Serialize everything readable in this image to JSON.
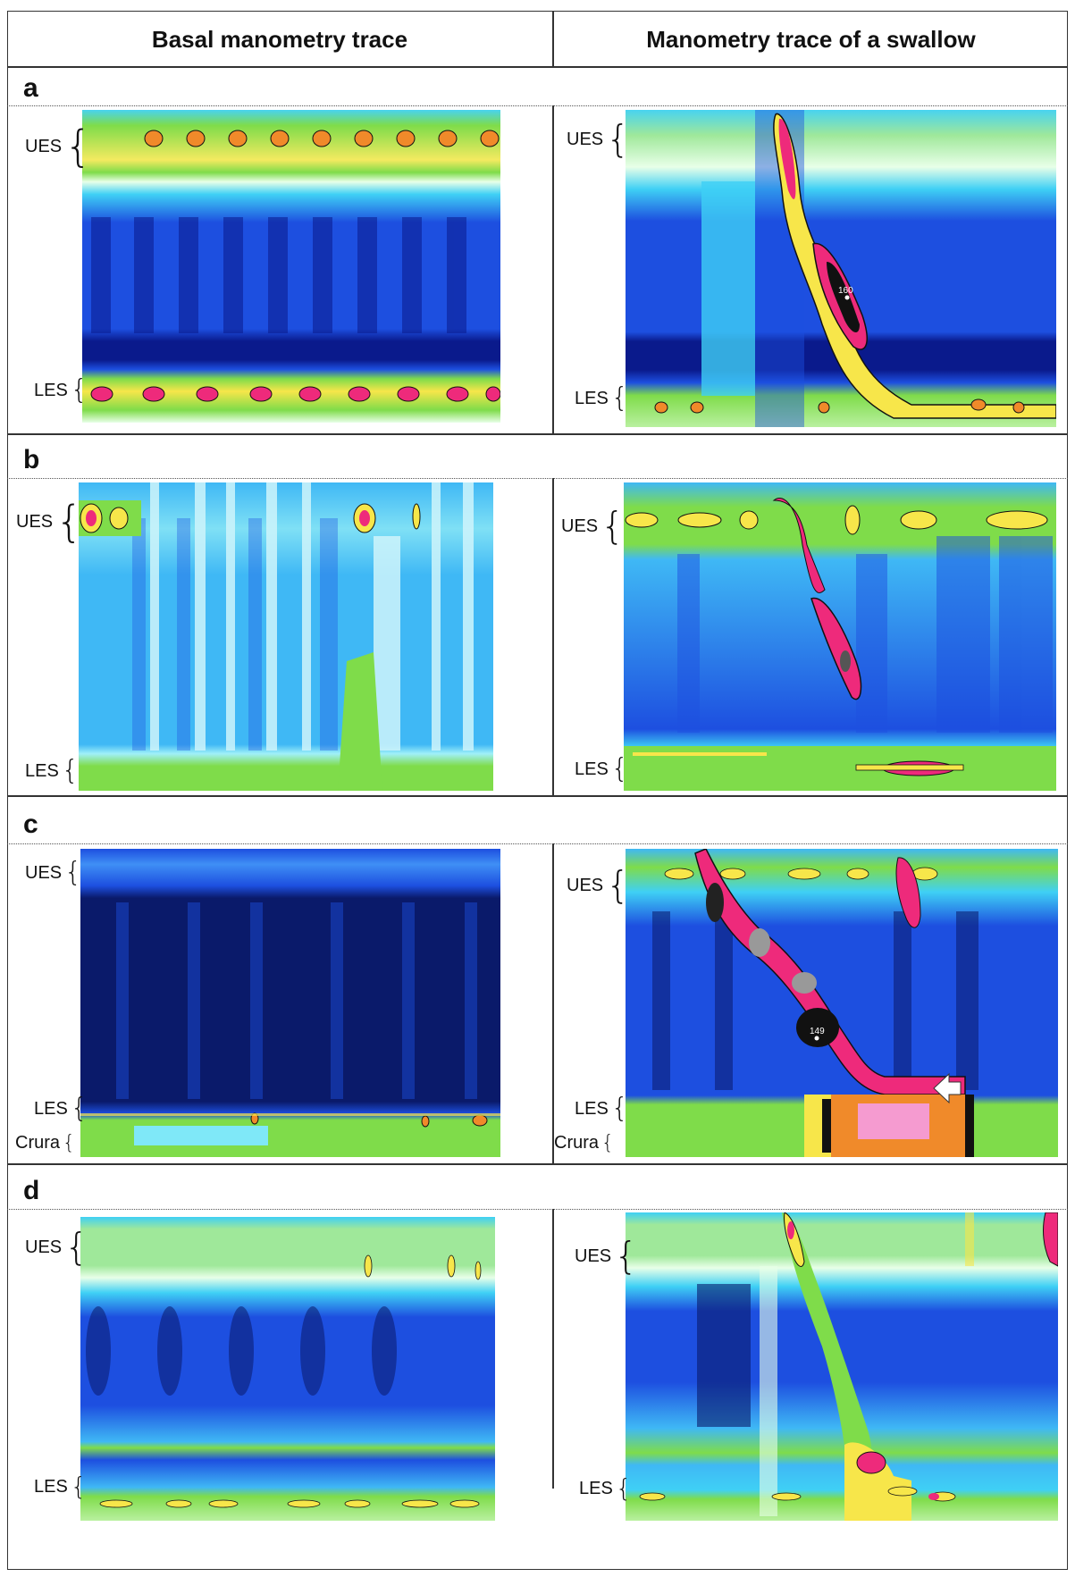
{
  "headers": {
    "left": "Basal manometry trace",
    "right": "Manometry trace of a swallow"
  },
  "panels": [
    {
      "letter": "a",
      "left_labels": [
        "UES",
        "LES"
      ],
      "right_labels": [
        "UES",
        "LES"
      ],
      "right_value": "160"
    },
    {
      "letter": "b",
      "left_labels": [
        "UES",
        "LES"
      ],
      "right_labels": [
        "UES",
        "LES"
      ]
    },
    {
      "letter": "c",
      "left_labels": [
        "UES",
        "LES",
        "Crura"
      ],
      "right_labels": [
        "UES",
        "LES",
        "Crura"
      ],
      "right_value": "149"
    },
    {
      "letter": "d",
      "left_labels": [
        "UES",
        "LES"
      ],
      "right_labels": [
        "UES",
        "LES"
      ]
    }
  ],
  "colors": {
    "deep_blue": "#0a1a8c",
    "blue": "#1d4fe0",
    "cyan": "#3fd0f5",
    "green": "#7fdc4a",
    "yellow": "#f7e64a",
    "orange": "#f08a2a",
    "magenta": "#ee2a7b",
    "black": "#111111"
  }
}
